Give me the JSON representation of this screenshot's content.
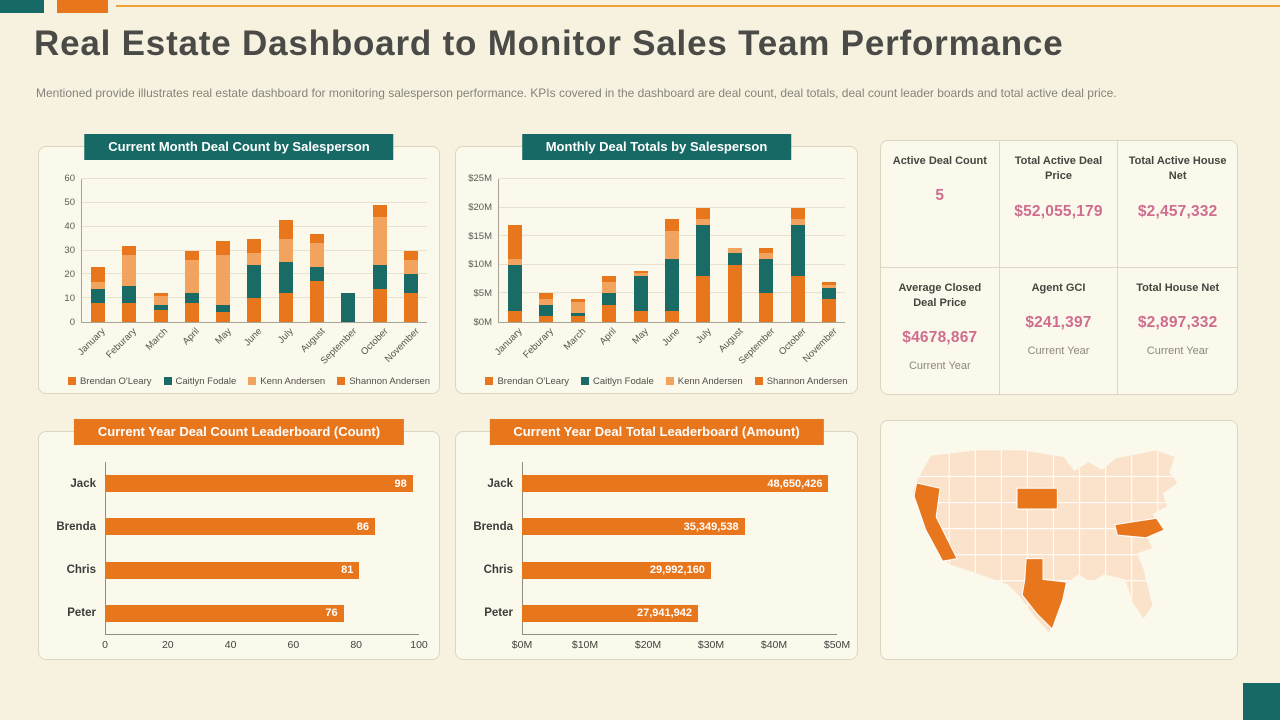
{
  "slide": {
    "title": "Real Estate Dashboard to Monitor Sales Team Performance",
    "subtitle": "Mentioned provide illustrates real estate dashboard for monitoring salesperson performance. KPIs covered in the dashboard are deal count, deal totals, deal count leader boards and total active deal price."
  },
  "colors": {
    "teal": "#166964",
    "orange": "#e8761d",
    "peach": "#f2a45f",
    "pink_value": "#cf6d8f",
    "background": "#f7f2e0",
    "accent_line": "#efa236",
    "map_base": "#fbe2cb",
    "map_highlight": "#e8761d"
  },
  "chart_data": [
    {
      "id": "deal-count-by-salesperson",
      "type": "stacked-bar",
      "title": "Current Month Deal Count by Salesperson",
      "categories": [
        "January",
        "Feburary",
        "March",
        "April",
        "May",
        "June",
        "July",
        "August",
        "September",
        "October",
        "November"
      ],
      "series": [
        {
          "name": "Brendan O'Leary",
          "color": "#e8761d",
          "values": [
            8,
            8,
            5,
            8,
            4,
            10,
            12,
            17,
            0,
            14,
            12
          ]
        },
        {
          "name": "Caitlyn Fodale",
          "color": "#1a6b66",
          "values": [
            6,
            7,
            2,
            4,
            3,
            14,
            13,
            6,
            12,
            10,
            8
          ]
        },
        {
          "name": "Kenn Andersen",
          "color": "#f2a45f",
          "values": [
            3,
            13,
            4,
            14,
            21,
            5,
            10,
            10,
            0,
            20,
            6
          ]
        },
        {
          "name": "Shannon Andersen",
          "color": "#e8761d",
          "values": [
            6,
            4,
            1,
            4,
            6,
            6,
            8,
            4,
            0,
            5,
            4
          ]
        }
      ],
      "ylim": [
        0,
        60
      ],
      "yticks": [
        "0",
        "10",
        "20",
        "30",
        "40",
        "50",
        "60"
      ],
      "grid": true,
      "legend_position": "bottom"
    },
    {
      "id": "monthly-deal-totals-by-salesperson",
      "type": "stacked-bar",
      "title": "Monthly Deal Totals by Salesperson",
      "categories": [
        "January",
        "Feburary",
        "March",
        "April",
        "May",
        "June",
        "July",
        "August",
        "September",
        "October",
        "November"
      ],
      "series": [
        {
          "name": "Brendan O'Leary",
          "color": "#e8761d",
          "values": [
            2,
            1,
            1,
            3,
            2,
            2,
            8,
            10,
            5,
            8,
            4
          ]
        },
        {
          "name": "Caitlyn Fodale",
          "color": "#1a6b66",
          "values": [
            8,
            2,
            0.5,
            2,
            6,
            9,
            9,
            2,
            6,
            9,
            2
          ]
        },
        {
          "name": "Kenn Andersen",
          "color": "#f2a45f",
          "values": [
            1,
            1,
            2,
            2,
            0.5,
            5,
            1,
            1,
            1,
            1,
            0.5
          ]
        },
        {
          "name": "Shannon Andersen",
          "color": "#e8761d",
          "values": [
            6,
            1,
            0.5,
            1,
            0.5,
            2,
            2,
            0,
            1,
            2,
            0.5
          ]
        }
      ],
      "ylim": [
        0,
        25
      ],
      "yticks": [
        "$0M",
        "$5M",
        "$10M",
        "$15M",
        "$20M",
        "$25M"
      ],
      "unit": "$M",
      "grid": true,
      "legend_position": "bottom"
    },
    {
      "id": "deal-count-leaderboard",
      "type": "hbar",
      "title": "Current Year Deal Count Leaderboard (Count)",
      "items": [
        {
          "name": "Jack",
          "value": 98,
          "label": "98"
        },
        {
          "name": "Brenda",
          "value": 86,
          "label": "86"
        },
        {
          "name": "Chris",
          "value": 81,
          "label": "81"
        },
        {
          "name": "Peter",
          "value": 76,
          "label": "76"
        }
      ],
      "xlim": [
        0,
        100
      ],
      "xticks": [
        "0",
        "20",
        "40",
        "60",
        "80",
        "100"
      ]
    },
    {
      "id": "deal-total-leaderboard",
      "type": "hbar",
      "title": "Current Year Deal Total Leaderboard (Amount)",
      "items": [
        {
          "name": "Jack",
          "value": 48650426,
          "label": "48,650,426"
        },
        {
          "name": "Brenda",
          "value": 35349538,
          "label": "35,349,538"
        },
        {
          "name": "Chris",
          "value": 29992160,
          "label": "29,992,160"
        },
        {
          "name": "Peter",
          "value": 27941942,
          "label": "27,941,942"
        }
      ],
      "xlim": [
        0,
        50000000
      ],
      "xticks": [
        "$0M",
        "$10M",
        "$20M",
        "$30M",
        "$40M",
        "$50M"
      ]
    }
  ],
  "kpis": {
    "items": [
      {
        "label": "Active Deal Count",
        "value": "5",
        "sub": ""
      },
      {
        "label": "Total Active Deal Price",
        "value": "$52,055,179",
        "sub": ""
      },
      {
        "label": "Total Active House Net",
        "value": "$2,457,332",
        "sub": ""
      },
      {
        "label": "Average Closed Deal Price",
        "value": "$4678,867",
        "sub": "Current Year"
      },
      {
        "label": "Agent GCI",
        "value": "$241,397",
        "sub": "Current Year"
      },
      {
        "label": "Total House Net",
        "value": "$2,897,332",
        "sub": "Current Year"
      }
    ]
  },
  "map": {
    "highlighted_states": [
      "California",
      "South Dakota",
      "Texas",
      "North Carolina"
    ],
    "base_color": "#fbe2cb",
    "highlight_color": "#e8761d"
  }
}
